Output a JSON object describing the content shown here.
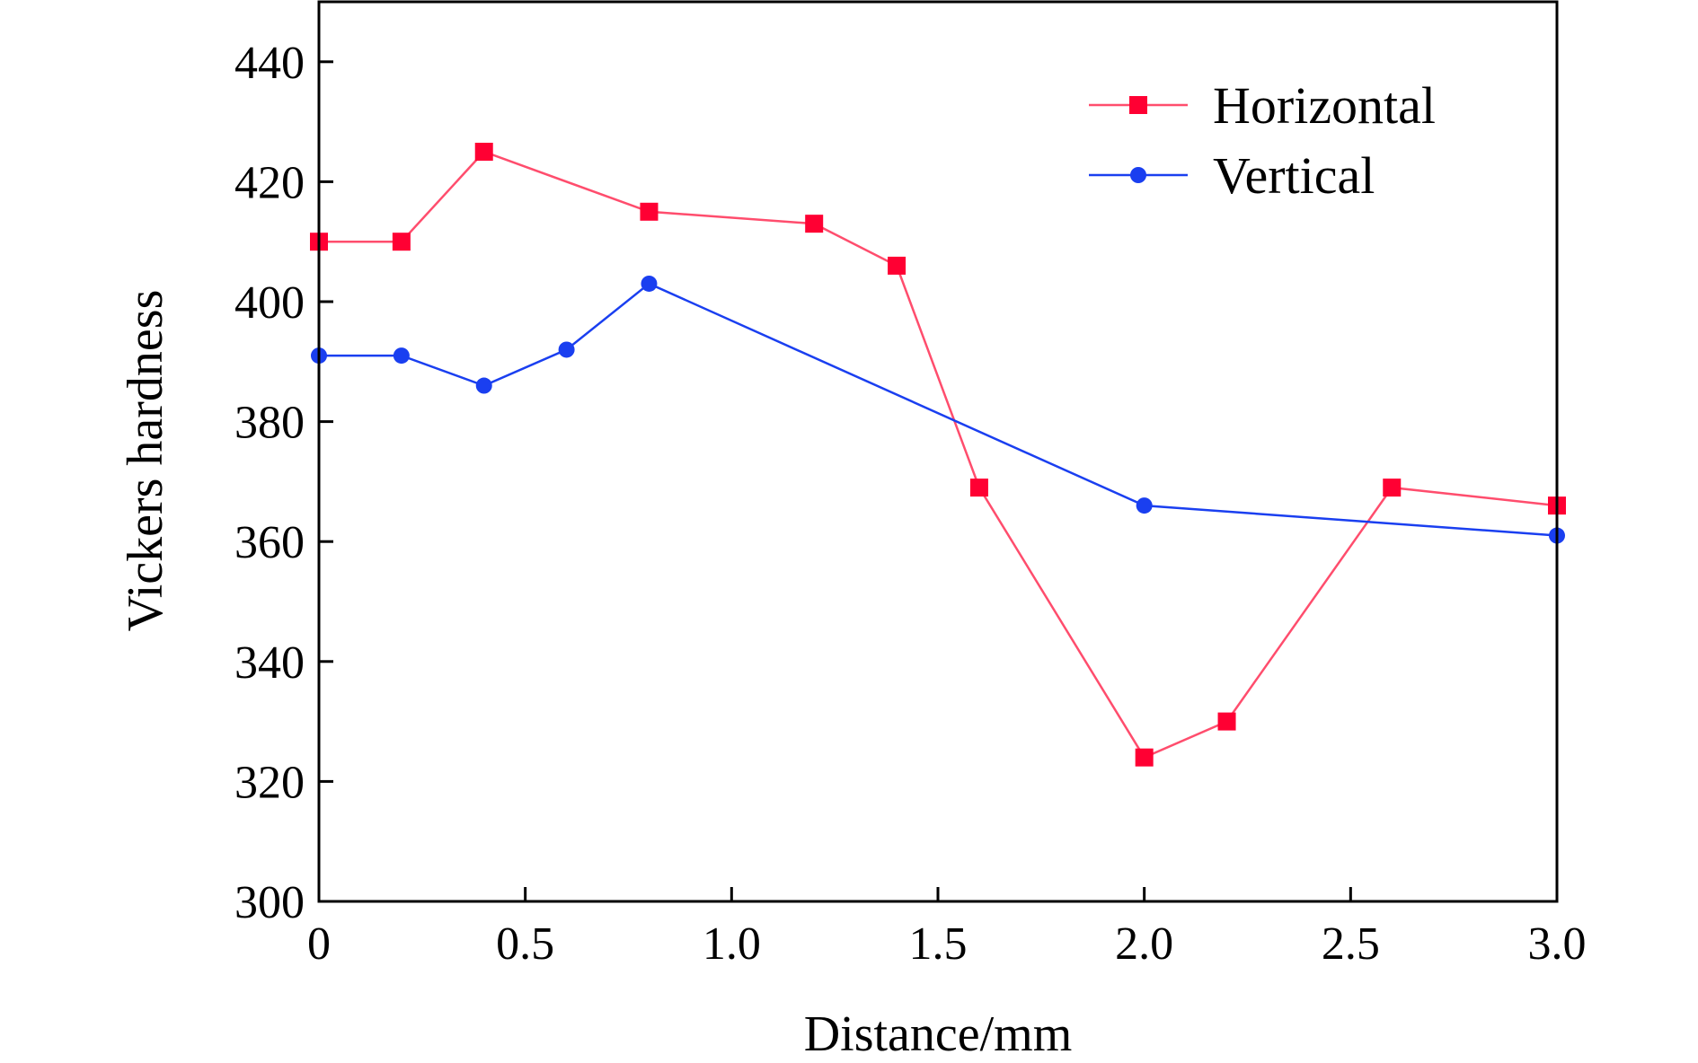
{
  "chart_data": {
    "type": "line",
    "title": "",
    "xlabel": "Distance/mm",
    "ylabel": "Vickers hardness",
    "xlim": [
      0,
      3.0
    ],
    "ylim": [
      300,
      450
    ],
    "xticks": [
      0,
      0.5,
      1.0,
      1.5,
      2.0,
      2.5,
      3.0
    ],
    "xtick_labels": [
      "0",
      "0.5",
      "1.0",
      "1.5",
      "2.0",
      "2.5",
      "3.0"
    ],
    "yticks": [
      300,
      320,
      340,
      360,
      380,
      400,
      420,
      440
    ],
    "ytick_labels": [
      "300",
      "320",
      "340",
      "360",
      "380",
      "400",
      "420",
      "440"
    ],
    "grid": false,
    "legend_position": "top-right",
    "series": [
      {
        "name": "Horizontal",
        "color": "#ff0033",
        "line_color": "#ff4d6d",
        "marker": "square",
        "x": [
          0,
          0.2,
          0.4,
          0.8,
          1.2,
          1.4,
          1.6,
          2.0,
          2.2,
          2.6,
          3.0
        ],
        "y": [
          410,
          410,
          425,
          415,
          413,
          406,
          369,
          324,
          330,
          369,
          366
        ]
      },
      {
        "name": "Vertical",
        "color": "#1a3ff0",
        "line_color": "#1a3ff0",
        "marker": "circle",
        "x": [
          0,
          0.2,
          0.4,
          0.6,
          0.8,
          2.0,
          3.0
        ],
        "y": [
          391,
          391,
          386,
          392,
          403,
          366,
          361
        ]
      }
    ]
  }
}
